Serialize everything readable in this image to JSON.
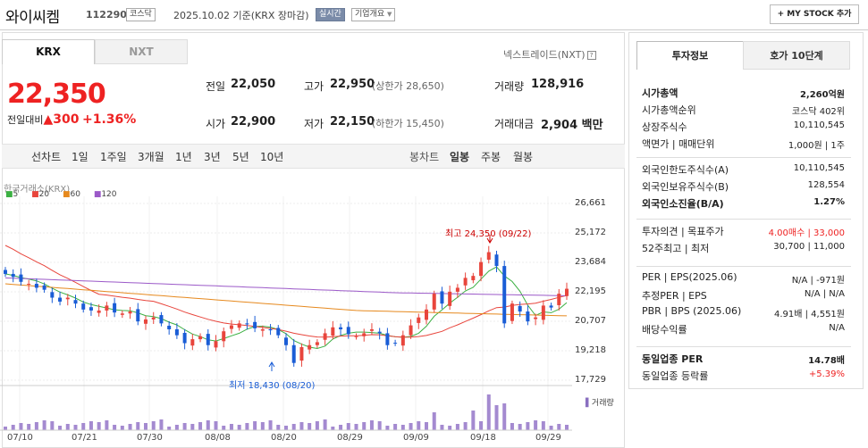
{
  "header": {
    "name": "와이씨켐",
    "code": "112290",
    "market": "코스닥",
    "date": "2025.10.02 기준(KRX 장마감)",
    "realtime": "실시간",
    "company": "기업개요",
    "mystock": "+ MY STOCK 추가"
  },
  "tabs": {
    "krx": "KRX",
    "nxt": "NXT",
    "nxt_link": "넥스트레이드(NXT)"
  },
  "quote": {
    "price": "22,350",
    "chg_label": "전일대비",
    "chg_value": "▲300",
    "chg_pct": "+1.36%",
    "prev_label": "전일",
    "prev": "22,050",
    "high_label": "고가",
    "high": "22,950",
    "upper": "(상한가 28,650)",
    "volume_label": "거래량",
    "volume": "128,916",
    "open_label": "시가",
    "open": "22,900",
    "low_label": "저가",
    "low": "22,150",
    "lower": "(하한가 15,450)",
    "amount_label": "거래대금",
    "amount": "2,904",
    "amount_unit": "백만"
  },
  "period": {
    "line": "선차트",
    "items": [
      "1일",
      "1주일",
      "3개월",
      "1년",
      "3년",
      "5년",
      "10년"
    ],
    "candle": "봉차트",
    "c1": "일봉",
    "c2": "주봉",
    "c3": "월봉"
  },
  "chart": {
    "source": "한국거래소(KRX)",
    "ma": [
      "5",
      "20",
      "60",
      "120"
    ],
    "ma_colors": [
      "#3cb043",
      "#e8453c",
      "#e6891e",
      "#9b59c8"
    ],
    "yticks": [
      "26,661",
      "25,172",
      "23,684",
      "22,195",
      "20,707",
      "19,218",
      "17,729"
    ],
    "xticks": [
      "07/10",
      "07/21",
      "07/30",
      "08/08",
      "08/20",
      "08/29",
      "09/09",
      "09/18",
      "09/29"
    ],
    "high_note": "최고 24,350 (09/22)",
    "low_note": "최저 18,430 (08/20)",
    "vol_label": "거래량"
  },
  "chart_data": {
    "type": "candlestick",
    "x": [
      "07/10",
      "07/21",
      "07/30",
      "08/08",
      "08/20",
      "08/29",
      "09/09",
      "09/18",
      "09/29"
    ],
    "ylim": [
      17729,
      26661
    ],
    "max": 24350,
    "min": 18430
  },
  "invest": {
    "tab1": "투자정보",
    "tab2": "호가 10단계",
    "rows1": [
      [
        "시가총액",
        "2,260억원"
      ],
      [
        "시가총액순위",
        "코스닥 402위"
      ],
      [
        "상장주식수",
        "10,110,545"
      ],
      [
        "액면가 | 매매단위",
        "1,000원 | 1주"
      ]
    ],
    "rows2": [
      [
        "외국인한도주식수(A)",
        "10,110,545"
      ],
      [
        "외국인보유주식수(B)",
        "128,554"
      ],
      [
        "외국인소진율(B/A)",
        "1.27%"
      ]
    ],
    "rows3": [
      [
        "투자의견 | 목표주가",
        "4.00매수 | 33,000"
      ],
      [
        "52주최고 | 최저",
        "30,700 | 11,000"
      ]
    ],
    "rows4": [
      [
        "PER | EPS(2025.06)",
        "N/A | -971원"
      ],
      [
        "추정PER | EPS",
        "N/A | N/A"
      ],
      [
        "PBR | BPS (2025.06)",
        "4.91배 | 4,551원"
      ],
      [
        "배당수익률",
        "N/A"
      ]
    ],
    "rows5": [
      [
        "동일업종 PER",
        "14.78배"
      ],
      [
        "동일업종 등락률",
        "+5.39%"
      ]
    ]
  }
}
